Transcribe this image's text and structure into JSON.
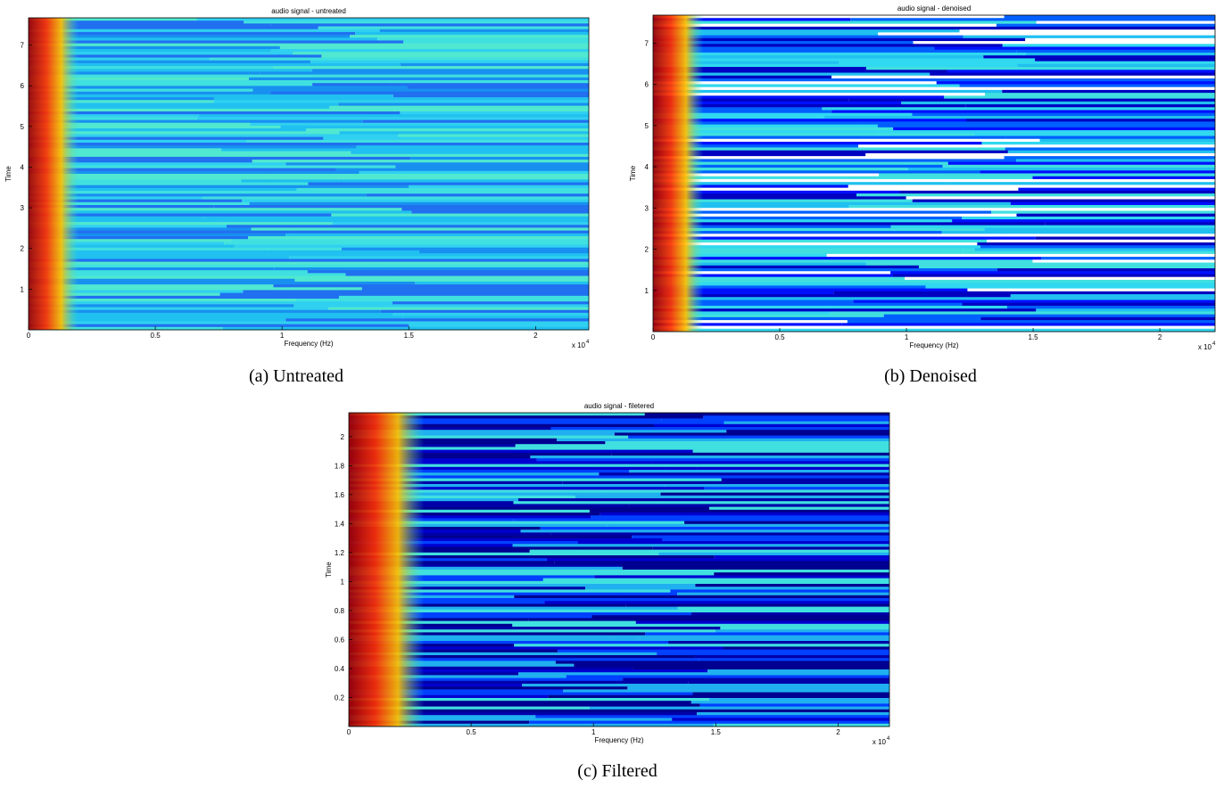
{
  "chart_data": [
    {
      "type": "heatmap",
      "title": "audio signal - untreated",
      "xlabel": "Frequency (Hz)",
      "ylabel": "Time",
      "xlim": [
        0,
        2.21
      ],
      "xticks": [
        0,
        0.5,
        1,
        1.5,
        2
      ],
      "x_scale_base": "x 10",
      "x_scale_exponent": "4",
      "ylim": [
        0,
        7.67
      ],
      "yticks": [
        1,
        2,
        3,
        4,
        5,
        6,
        7
      ],
      "caption": "(a) Untreated"
    },
    {
      "type": "heatmap",
      "title": "audio signal - denoised",
      "xlabel": "Frequency (Hz)",
      "ylabel": "Time",
      "xlim": [
        0,
        2.218
      ],
      "xticks": [
        0,
        0.5,
        1,
        1.5,
        2
      ],
      "x_scale_base": "x 10",
      "x_scale_exponent": "4",
      "ylim": [
        0,
        7.68
      ],
      "yticks": [
        1,
        2,
        3,
        4,
        5,
        6,
        7
      ],
      "caption": "(b) Denoised"
    },
    {
      "type": "heatmap",
      "title": "audio signal - filetered",
      "xlabel": "Frequency (Hz)",
      "ylabel": "Time",
      "xlim": [
        0,
        2.21
      ],
      "xticks": [
        0,
        0.5,
        1,
        1.5,
        2
      ],
      "x_scale_base": "x 10",
      "x_scale_exponent": "4",
      "ylim": [
        0,
        2.165
      ],
      "yticks": [
        0.2,
        0.4,
        0.6,
        0.8,
        1,
        1.2,
        1.4,
        1.6,
        1.8,
        2
      ],
      "caption": "(c) Filtered"
    }
  ]
}
